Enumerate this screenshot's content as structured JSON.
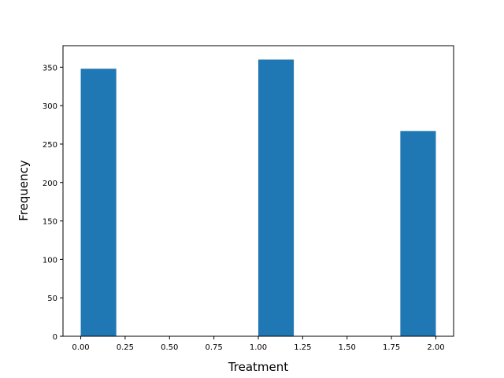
{
  "chart_data": {
    "type": "bar",
    "title": "",
    "xlabel": "Treatment",
    "ylabel": "Frequency",
    "bars": [
      {
        "x0": 0.0,
        "x1": 0.2,
        "value": 348
      },
      {
        "x0": 1.0,
        "x1": 1.2,
        "value": 360
      },
      {
        "x0": 1.8,
        "x1": 2.0,
        "value": 267
      }
    ],
    "xlim": [
      -0.1,
      2.1
    ],
    "ylim": [
      0,
      378
    ],
    "xticks": [
      0.0,
      0.25,
      0.5,
      0.75,
      1.0,
      1.25,
      1.5,
      1.75,
      2.0
    ],
    "xtick_labels": [
      "0.00",
      "0.25",
      "0.50",
      "0.75",
      "1.00",
      "1.25",
      "1.50",
      "1.75",
      "2.00"
    ],
    "yticks": [
      0,
      50,
      100,
      150,
      200,
      250,
      300,
      350
    ],
    "ytick_labels": [
      "0",
      "50",
      "100",
      "150",
      "200",
      "250",
      "300",
      "350"
    ],
    "bar_color": "#1f77b4",
    "grid": false,
    "legend": "none"
  }
}
